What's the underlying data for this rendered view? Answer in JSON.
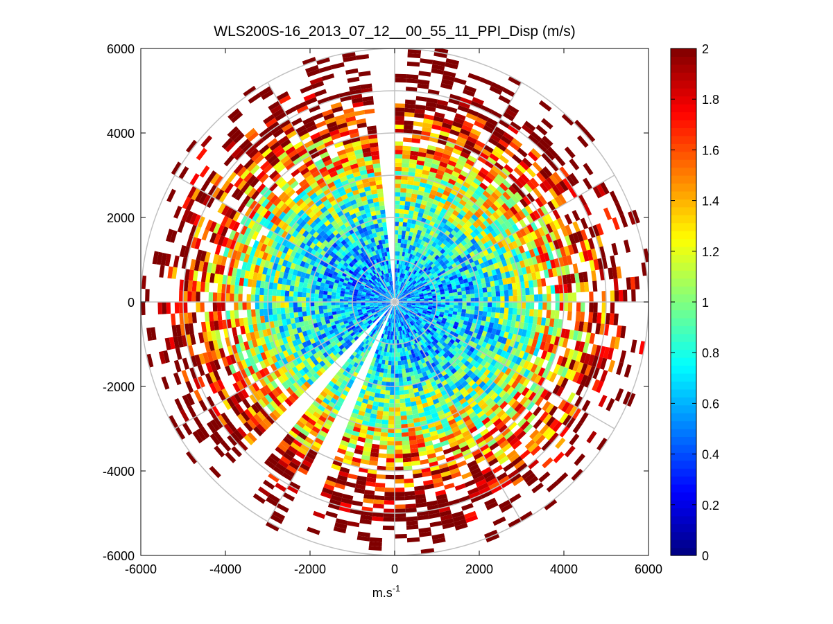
{
  "chart_data": {
    "type": "heatmap",
    "subtype": "polar-ppi",
    "title": "WLS200S-16_2013_07_12__00_55_11_PPI_Disp (m/s)",
    "xlabel_base": "m.s",
    "xlabel_exp": "-1",
    "ylabel": "",
    "xlim": [
      -6000,
      6000
    ],
    "ylim": [
      -6000,
      6000
    ],
    "x_ticks": [
      "-6000",
      "-4000",
      "-2000",
      "0",
      "2000",
      "4000",
      "6000"
    ],
    "y_ticks": [
      "6000",
      "4000",
      "2000",
      "0",
      "-2000",
      "-4000",
      "-6000"
    ],
    "grid_rings": [
      1000,
      2000,
      3000,
      4000,
      5000,
      6000
    ],
    "grid_spokes_deg": [
      0,
      30,
      60,
      90,
      120,
      150,
      180,
      210,
      240,
      270,
      300,
      330
    ],
    "colormap": "jet",
    "clim": [
      0,
      2
    ],
    "colorbar_ticks": [
      "2",
      "1.8",
      "1.6",
      "1.4",
      "1.2",
      "1",
      "0.8",
      "0.6",
      "0.4",
      "0.2",
      "0"
    ],
    "range_bins": {
      "start": 100,
      "step": 100,
      "count": 60
    },
    "azimuth_step_deg": 3,
    "blanked_sectors_deg": [
      [
        -5,
        0
      ],
      [
        200,
        206
      ],
      [
        219,
        225
      ]
    ],
    "colors": {
      "grid": "#c0c0c0",
      "axes": "#000000",
      "background": "#ffffff"
    }
  }
}
